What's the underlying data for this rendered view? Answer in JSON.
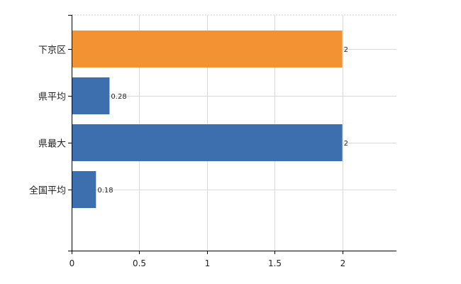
{
  "chart_data": {
    "type": "bar",
    "orientation": "horizontal",
    "categories": [
      "下京区",
      "県平均",
      "県最大",
      "全国平均"
    ],
    "values": [
      2,
      0.28,
      2,
      0.18
    ],
    "data_labels": [
      "2",
      "0.28",
      "2",
      "0.18"
    ],
    "bar_colors": [
      "#f39233",
      "#3d6ead",
      "#3d6ead",
      "#3d6ead"
    ],
    "title": "",
    "xlabel": "",
    "ylabel": "",
    "xlim": [
      0,
      2.4
    ],
    "x_ticks": [
      0,
      0.5,
      1,
      1.5,
      2
    ],
    "x_tick_labels": [
      "0",
      "0.5",
      "1",
      "1.5",
      "2"
    ],
    "grid": true,
    "legend": "none"
  }
}
